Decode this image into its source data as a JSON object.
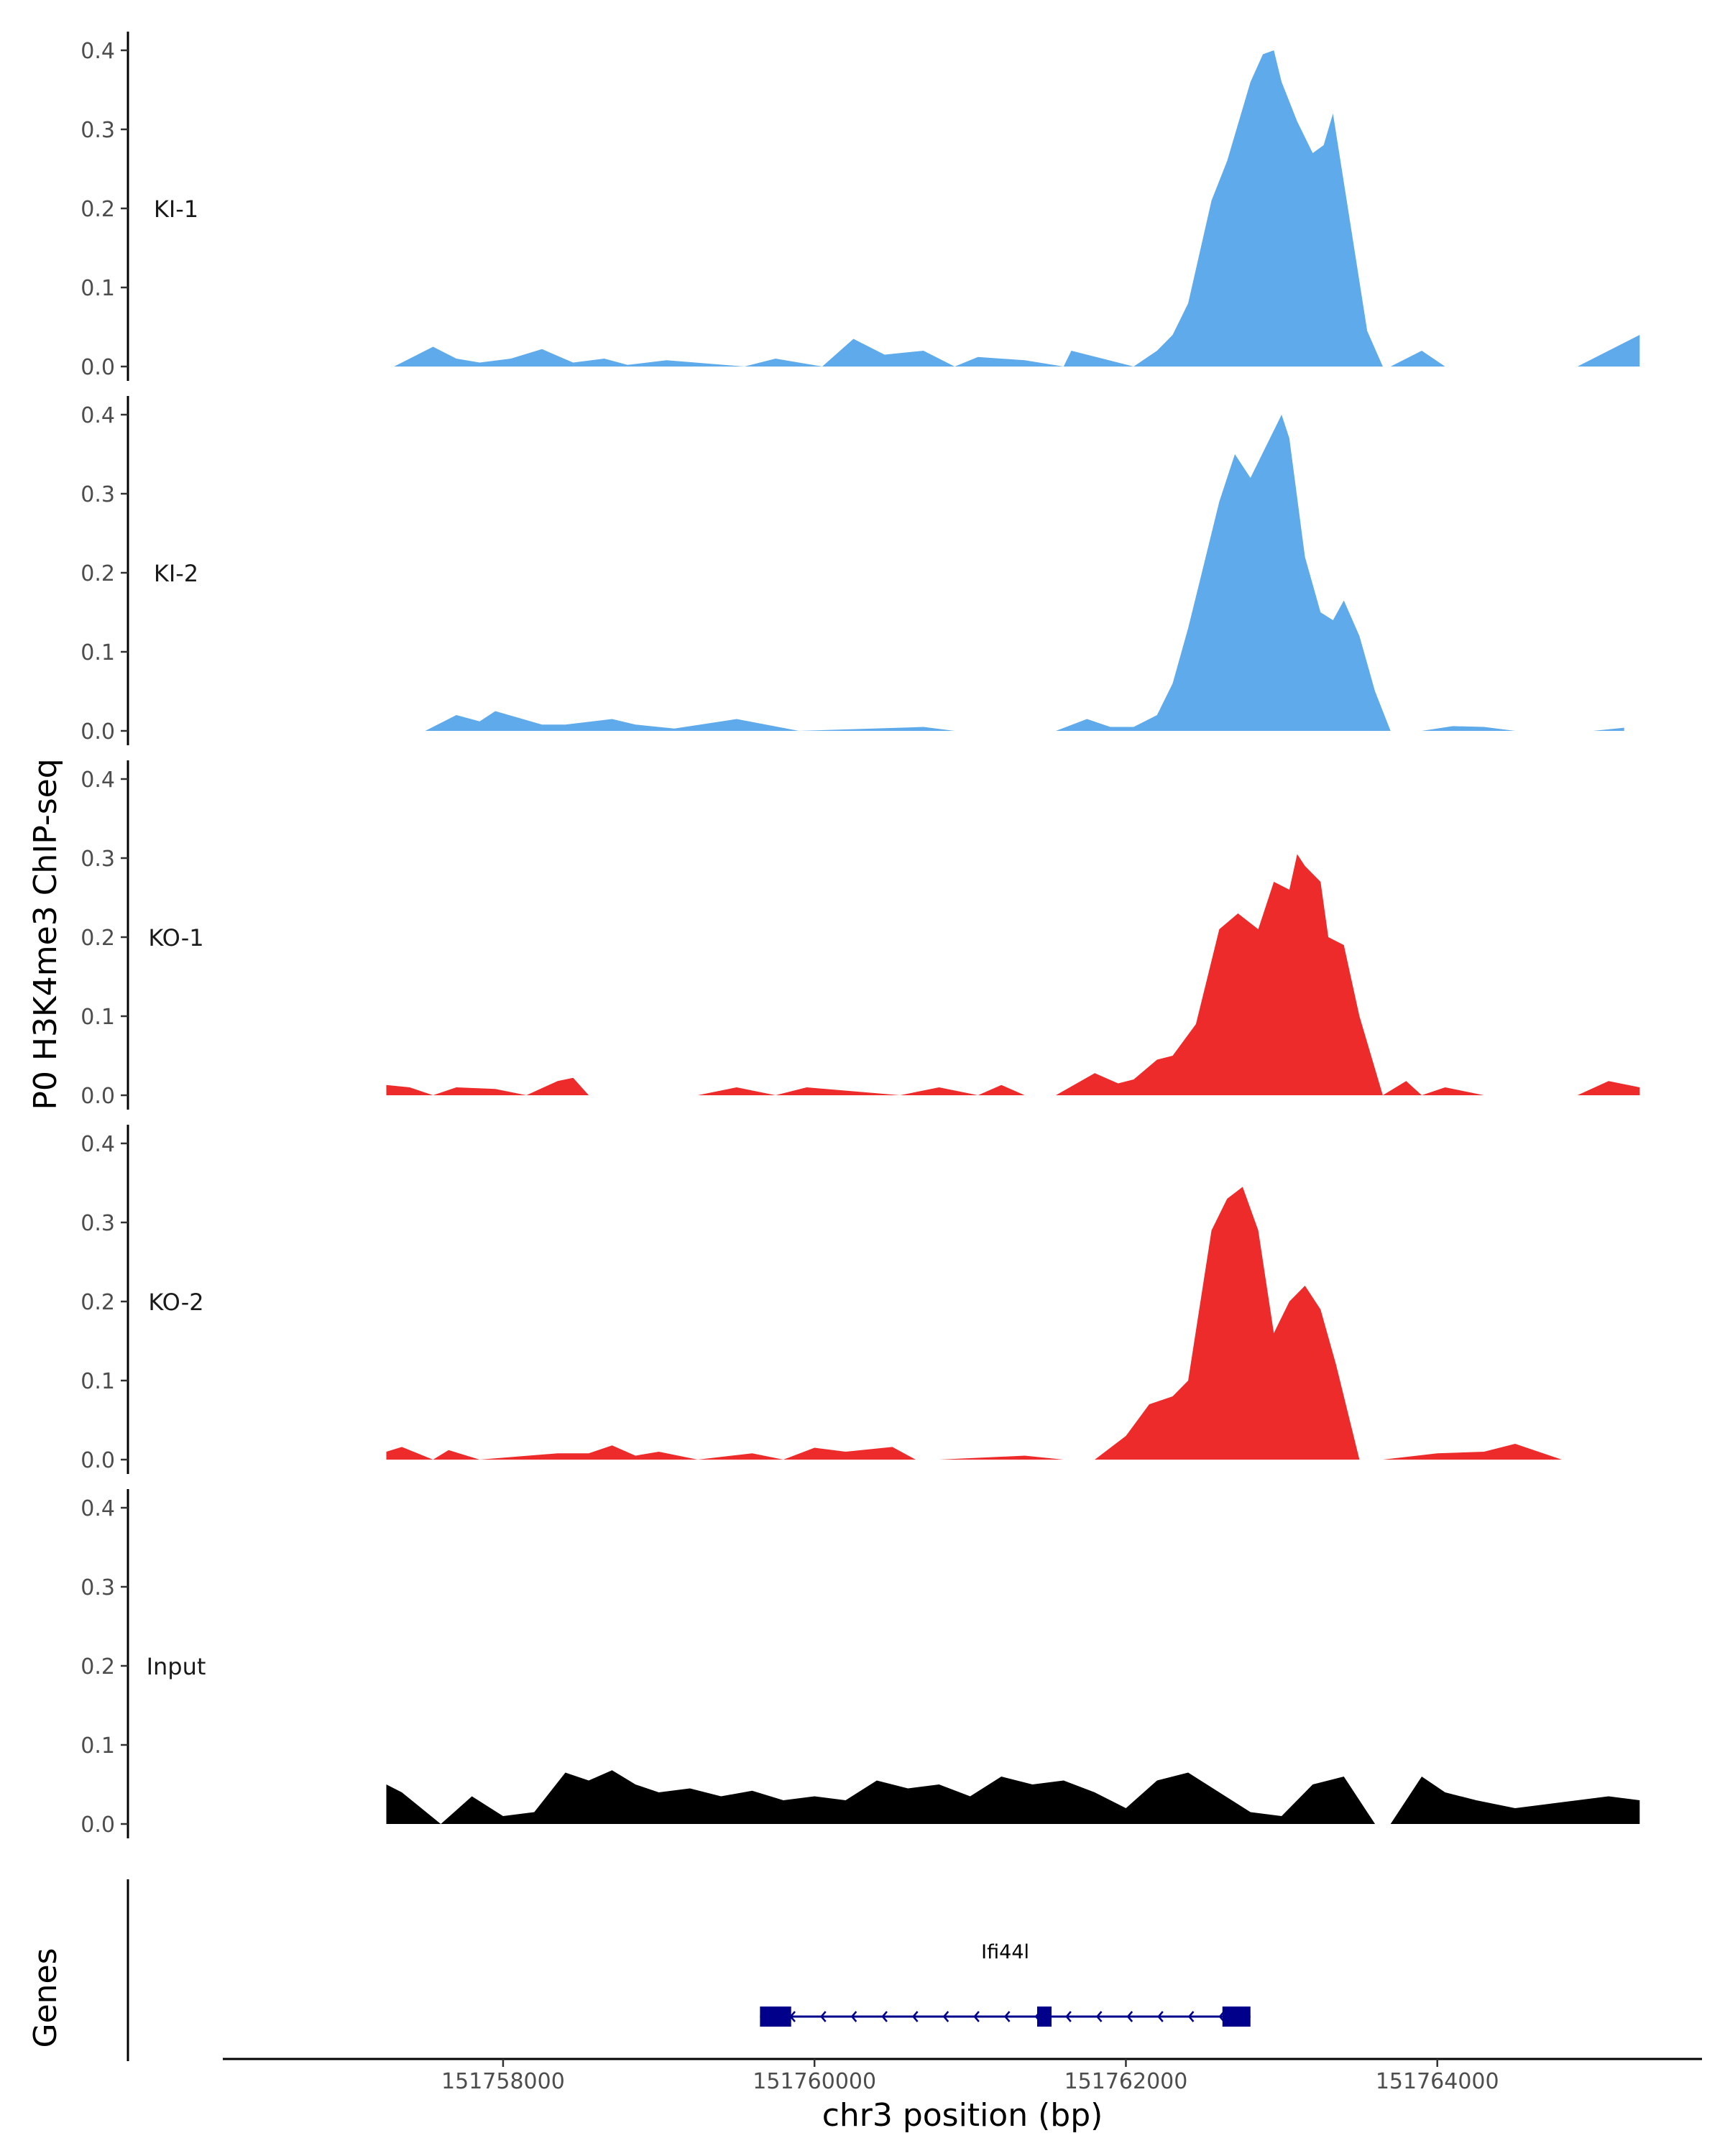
{
  "chart_data": {
    "type": "area",
    "ylabel": "P0 H3K4me3 ChIP-seq",
    "xlabel": "chr3 position (bp)",
    "genes_label": "Genes",
    "xlim": [
      151756200,
      151765700
    ],
    "ylim": [
      0,
      0.42
    ],
    "x_ticks": [
      151758000,
      151760000,
      151762000,
      151764000
    ],
    "x_tick_labels": [
      "151758000",
      "151760000",
      "151762000",
      "151764000"
    ],
    "y_ticks": [
      0.0,
      0.1,
      0.2,
      0.3,
      0.4
    ],
    "y_tick_labels": [
      "0.0",
      "0.1",
      "0.2",
      "0.3",
      "0.4"
    ],
    "colors": {
      "KI": "#5eaaea",
      "KO": "#ee2b2b",
      "Input": "#000000",
      "gene": "#00008b"
    },
    "series": [
      {
        "name": "KI-1",
        "color": "#5eaaea",
        "x": [
          151757300,
          151757550,
          151757700,
          151757850,
          151758050,
          151758250,
          151758450,
          151758650,
          151758800,
          151759050,
          151759550,
          151759750,
          151760050,
          151760250,
          151760450,
          151760700,
          151760900,
          151761050,
          151761350,
          151761600,
          151761650,
          151761850,
          151762050,
          151762200,
          151762300,
          151762400,
          151762550,
          151762650,
          151762800,
          151762880,
          151762950,
          151763000,
          151763100,
          151763200,
          151763270,
          151763330,
          151763450,
          151763550,
          151763650,
          151763700,
          151763900,
          151764050,
          151764250,
          151764900,
          151765100,
          151765300
        ],
        "y": [
          0.0,
          0.025,
          0.01,
          0.005,
          0.01,
          0.022,
          0.005,
          0.01,
          0.002,
          0.008,
          0.0,
          0.01,
          0.0,
          0.035,
          0.015,
          0.02,
          0.0,
          0.012,
          0.008,
          0.0,
          0.02,
          0.01,
          0.0,
          0.02,
          0.04,
          0.08,
          0.21,
          0.26,
          0.36,
          0.395,
          0.4,
          0.36,
          0.31,
          0.27,
          0.28,
          0.32,
          0.17,
          0.045,
          0.0,
          0.0,
          0.02,
          0.0,
          0.0,
          0.0,
          0.02,
          0.04
        ]
      },
      {
        "name": "KI-2",
        "color": "#5eaaea",
        "x": [
          151757500,
          151757700,
          151757850,
          151757950,
          151758250,
          151758400,
          151758700,
          151758850,
          151759100,
          151759500,
          151759900,
          151760700,
          151760900,
          151761550,
          151761750,
          151761900,
          151762050,
          151762200,
          151762300,
          151762400,
          151762500,
          151762600,
          151762700,
          151762800,
          151762900,
          151763000,
          151763050,
          151763150,
          151763250,
          151763330,
          151763400,
          151763500,
          151763600,
          151763700,
          151763900,
          151764100,
          151764300,
          151764500,
          151765000,
          151765200
        ],
        "y": [
          0.0,
          0.02,
          0.012,
          0.025,
          0.008,
          0.008,
          0.015,
          0.008,
          0.003,
          0.015,
          0.0,
          0.005,
          0.0,
          0.0,
          0.015,
          0.005,
          0.005,
          0.02,
          0.06,
          0.13,
          0.21,
          0.29,
          0.35,
          0.32,
          0.36,
          0.4,
          0.37,
          0.22,
          0.15,
          0.14,
          0.165,
          0.12,
          0.05,
          0.0,
          0.0,
          0.006,
          0.005,
          0.0,
          0.0,
          0.004
        ]
      },
      {
        "name": "KO-1",
        "color": "#ee2b2b",
        "x": [
          151757250,
          151757400,
          151757550,
          151757700,
          151757950,
          151758150,
          151758350,
          151758450,
          151758550,
          151758750,
          151759250,
          151759500,
          151759750,
          151759950,
          151760550,
          151760800,
          151761050,
          151761200,
          151761350,
          151761550,
          151761800,
          151761950,
          151762050,
          151762200,
          151762300,
          151762450,
          151762600,
          151762720,
          151762850,
          151762950,
          151763050,
          151763100,
          151763150,
          151763250,
          151763300,
          151763400,
          151763500,
          151763650,
          151763800,
          151763900,
          151764050,
          151764300,
          151764900,
          151765100,
          151765300
        ],
        "y": [
          0.013,
          0.01,
          0.0,
          0.01,
          0.008,
          0.0,
          0.018,
          0.022,
          0.0,
          0.0,
          0.0,
          0.01,
          0.0,
          0.01,
          0.0,
          0.01,
          0.0,
          0.013,
          0.0,
          0.0,
          0.028,
          0.015,
          0.02,
          0.045,
          0.05,
          0.09,
          0.21,
          0.23,
          0.21,
          0.27,
          0.26,
          0.305,
          0.29,
          0.27,
          0.2,
          0.19,
          0.1,
          0.0,
          0.018,
          0.0,
          0.01,
          0.0,
          0.0,
          0.018,
          0.01
        ]
      },
      {
        "name": "KO-2",
        "color": "#ee2b2b",
        "x": [
          151757250,
          151757350,
          151757550,
          151757650,
          151757850,
          151758350,
          151758550,
          151758700,
          151758850,
          151759000,
          151759250,
          151759600,
          151759800,
          151760000,
          151760200,
          151760500,
          151760650,
          151760800,
          151761350,
          151761600,
          151761800,
          151762000,
          151762150,
          151762300,
          151762400,
          151762550,
          151762650,
          151762750,
          151762850,
          151762950,
          151763050,
          151763150,
          151763250,
          151763350,
          151763500,
          151763650,
          151764000,
          151764300,
          151764500,
          151764800
        ],
        "y": [
          0.01,
          0.016,
          0.0,
          0.012,
          0.0,
          0.008,
          0.008,
          0.018,
          0.005,
          0.01,
          0.0,
          0.008,
          0.0,
          0.015,
          0.01,
          0.016,
          0.0,
          0.0,
          0.005,
          0.0,
          0.0,
          0.03,
          0.07,
          0.08,
          0.1,
          0.29,
          0.33,
          0.345,
          0.29,
          0.16,
          0.2,
          0.22,
          0.19,
          0.12,
          0.0,
          0.0,
          0.008,
          0.01,
          0.02,
          0.0
        ]
      },
      {
        "name": "Input",
        "color": "#000000",
        "x": [
          151757250,
          151757350,
          151757600,
          151757800,
          151758000,
          151758200,
          151758400,
          151758550,
          151758700,
          151758850,
          151759000,
          151759200,
          151759400,
          151759600,
          151759800,
          151760000,
          151760200,
          151760400,
          151760600,
          151760800,
          151761000,
          151761200,
          151761400,
          151761600,
          151761800,
          151762000,
          151762200,
          151762400,
          151762600,
          151762800,
          151763000,
          151763200,
          151763400,
          151763600,
          151763700,
          151763900,
          151764050,
          151764250,
          151764500,
          151764700,
          151764900,
          151765100,
          151765300
        ],
        "y": [
          0.05,
          0.04,
          0.0,
          0.035,
          0.01,
          0.015,
          0.065,
          0.055,
          0.068,
          0.05,
          0.04,
          0.045,
          0.035,
          0.042,
          0.03,
          0.035,
          0.03,
          0.055,
          0.045,
          0.05,
          0.035,
          0.06,
          0.05,
          0.055,
          0.04,
          0.02,
          0.055,
          0.065,
          0.04,
          0.015,
          0.01,
          0.05,
          0.06,
          0.0,
          0.0,
          0.06,
          0.04,
          0.03,
          0.02,
          0.025,
          0.03,
          0.035,
          0.03
        ]
      }
    ],
    "gene": {
      "name": "Ifi44l",
      "start": 151759650,
      "end": 151762800,
      "strand": "-",
      "exons": [
        [
          151759650,
          151759850
        ],
        [
          151761430,
          151761520
        ],
        [
          151762620,
          151762800
        ]
      ]
    }
  }
}
